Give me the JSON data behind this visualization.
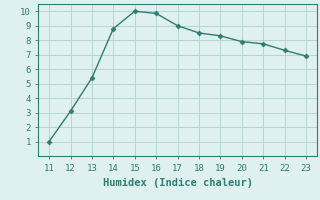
{
  "x": [
    11,
    12,
    13,
    14,
    15,
    16,
    17,
    18,
    19,
    20,
    21,
    22,
    23
  ],
  "y": [
    1.0,
    3.1,
    5.4,
    8.8,
    10.0,
    9.85,
    9.0,
    8.5,
    8.3,
    7.9,
    7.75,
    7.3,
    6.9
  ],
  "xlim": [
    10.5,
    23.5
  ],
  "ylim": [
    0,
    10.5
  ],
  "xticks": [
    11,
    12,
    13,
    14,
    15,
    16,
    17,
    18,
    19,
    20,
    21,
    22,
    23
  ],
  "yticks": [
    1,
    2,
    3,
    4,
    5,
    6,
    7,
    8,
    9,
    10
  ],
  "xlabel": "Humidex (Indice chaleur)",
  "line_color": "#2e7d6e",
  "marker": "D",
  "marker_size": 2.5,
  "background_color": "#dff0f0",
  "grid_color": "#b0cece",
  "tick_fontsize": 6.5,
  "xlabel_fontsize": 7.5
}
